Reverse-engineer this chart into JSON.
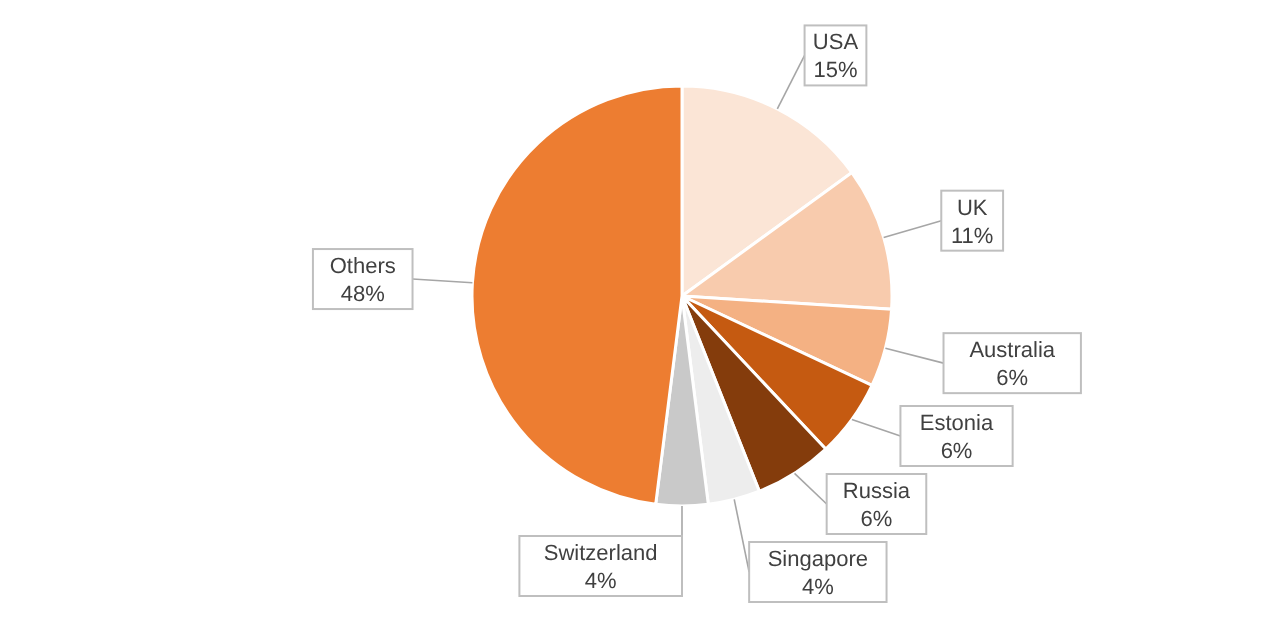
{
  "chart_data": {
    "type": "pie",
    "categories": [
      "USA",
      "UK",
      "Australia",
      "Estonia",
      "Russia",
      "Singapore",
      "Switzerland",
      "Others"
    ],
    "values": [
      15,
      11,
      6,
      6,
      6,
      4,
      4,
      48
    ],
    "value_labels": [
      "15%",
      "11%",
      "6%",
      "6%",
      "6%",
      "4%",
      "4%",
      "48%"
    ],
    "colors": [
      "#fbe5d6",
      "#f8cbad",
      "#f4b183",
      "#c55a11",
      "#843c0c",
      "#ededed",
      "#c9c9c9",
      "#ed7d31"
    ],
    "legend": false
  }
}
